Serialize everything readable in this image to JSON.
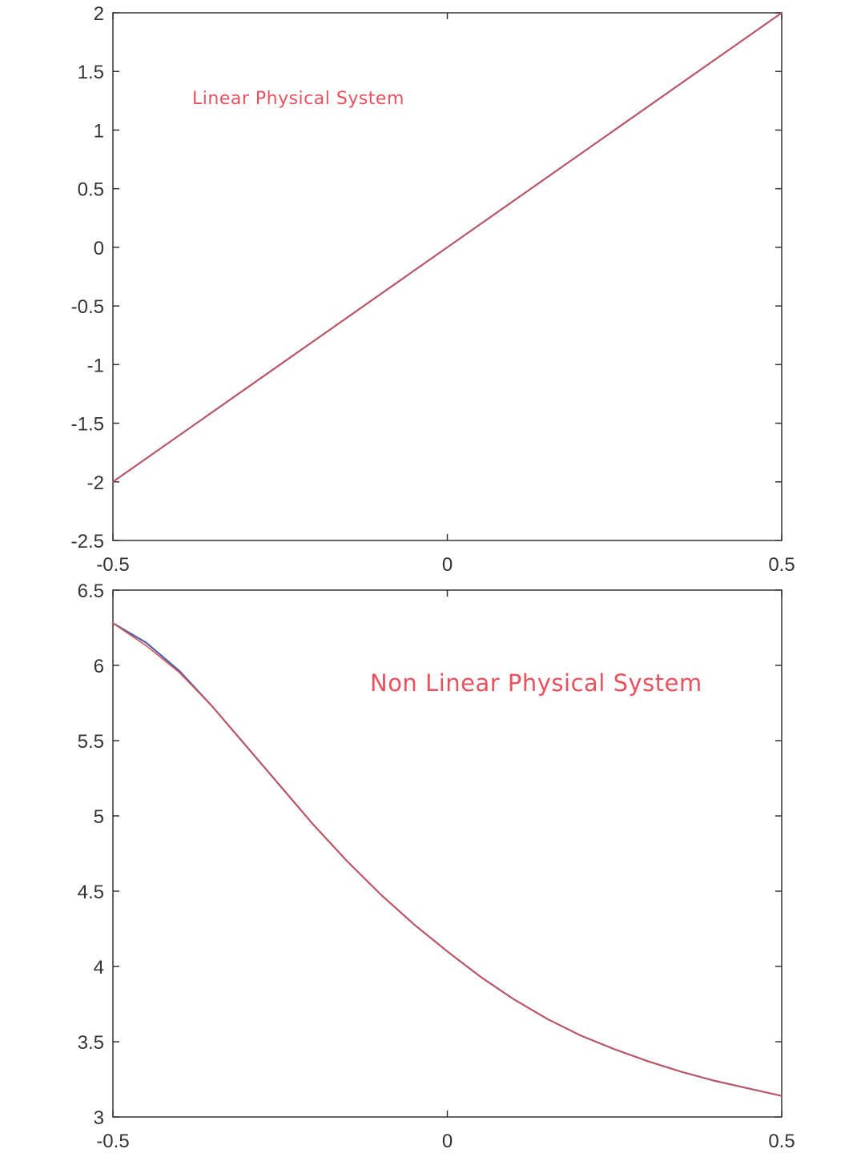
{
  "chart_data": [
    {
      "type": "line",
      "xlim": [
        -0.5,
        0.5
      ],
      "ylim": [
        -2.5,
        2
      ],
      "xticks": [
        -0.5,
        0,
        0.5
      ],
      "xtick_labels": [
        "-0.5",
        "0",
        "0.5"
      ],
      "yticks": [
        -2.5,
        -2,
        -1.5,
        -1,
        -0.5,
        0,
        0.5,
        1,
        1.5,
        2
      ],
      "ytick_labels": [
        "-2.5",
        "-2",
        "-1.5",
        "-1",
        "-0.5",
        "0",
        "0.5",
        "1",
        "1.5",
        "2"
      ],
      "grid": false,
      "annotation": "Linear Physical System",
      "annotation_color": "#e8515d",
      "series": [
        {
          "color": "#4a5fb0",
          "x": [
            -0.5,
            -0.25,
            0,
            0.25,
            0.5
          ],
          "y": [
            -2,
            -1,
            0,
            1,
            2
          ]
        },
        {
          "color": "#d9534f",
          "x": [
            -0.5,
            -0.25,
            0,
            0.25,
            0.5
          ],
          "y": [
            -2,
            -1,
            0,
            1,
            2
          ]
        }
      ]
    },
    {
      "type": "line",
      "xlim": [
        -0.5,
        0.5
      ],
      "ylim": [
        3,
        6.5
      ],
      "xticks": [
        -0.5,
        0,
        0.5
      ],
      "xtick_labels": [
        "-0.5",
        "0",
        "0.5"
      ],
      "yticks": [
        3,
        3.5,
        4,
        4.5,
        5,
        5.5,
        6,
        6.5
      ],
      "ytick_labels": [
        "3",
        "3.5",
        "4",
        "4.5",
        "5",
        "5.5",
        "6",
        "6.5"
      ],
      "grid": false,
      "annotation": "Non Linear Physical System",
      "annotation_color": "#e8515d",
      "series": [
        {
          "color": "#4a5fb0",
          "x": [
            -0.5,
            -0.45,
            -0.4,
            -0.35,
            -0.3,
            -0.25,
            -0.2,
            -0.15,
            -0.1,
            -0.05,
            0,
            0.05,
            0.1,
            0.15,
            0.2,
            0.25,
            0.3,
            0.35,
            0.4,
            0.45,
            0.5
          ],
          "y": [
            6.28,
            6.15,
            5.96,
            5.72,
            5.46,
            5.2,
            4.94,
            4.7,
            4.48,
            4.28,
            4.1,
            3.93,
            3.78,
            3.65,
            3.54,
            3.45,
            3.37,
            3.3,
            3.24,
            3.19,
            3.14
          ]
        },
        {
          "color": "#d9534f",
          "x": [
            -0.5,
            -0.45,
            -0.4,
            -0.35,
            -0.3,
            -0.25,
            -0.2,
            -0.15,
            -0.1,
            -0.05,
            0,
            0.05,
            0.1,
            0.15,
            0.2,
            0.25,
            0.3,
            0.35,
            0.4,
            0.45,
            0.5
          ],
          "y": [
            6.28,
            6.13,
            5.95,
            5.72,
            5.46,
            5.2,
            4.94,
            4.7,
            4.48,
            4.28,
            4.1,
            3.93,
            3.78,
            3.65,
            3.54,
            3.45,
            3.37,
            3.3,
            3.24,
            3.19,
            3.14
          ]
        }
      ]
    }
  ]
}
